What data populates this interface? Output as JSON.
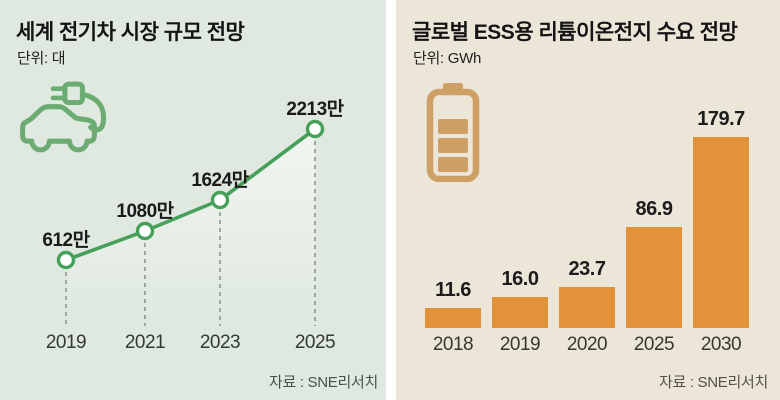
{
  "chart_data": [
    {
      "type": "line",
      "title": "세계 전기차 시장 규모 전망",
      "unit_label": "단위: 대",
      "ylabel": "대",
      "categories": [
        "2019",
        "2021",
        "2023",
        "2025"
      ],
      "values": [
        6120000,
        10800000,
        16240000,
        22130000
      ],
      "value_labels": [
        "612만",
        "1080만",
        "1624만",
        "2213만"
      ],
      "source": "자료 : SNE리서치",
      "grid": "off",
      "legend": "none",
      "marker": "open-circle",
      "ylim": [
        0,
        25000000
      ]
    },
    {
      "type": "bar",
      "title": "글로벌 ESS용 리튬이온전지 수요 전망",
      "unit_label": "단위: GWh",
      "ylabel": "GWh",
      "categories": [
        "2018",
        "2019",
        "2020",
        "2025",
        "2030"
      ],
      "values": [
        11.6,
        16.0,
        23.7,
        86.9,
        179.7
      ],
      "value_labels": [
        "11.6",
        "16.0",
        "23.7",
        "86.9",
        "179.7"
      ],
      "source": "자료 : SNE리서치",
      "grid": "off",
      "legend": "none",
      "ylim": [
        0,
        200
      ]
    }
  ],
  "icons": {
    "ev_car": "ev-car-icon",
    "battery": "battery-icon"
  },
  "colors": {
    "panel_left_bg": "#dfe9e0",
    "panel_right_bg": "#ece6d8",
    "divider": "#ffffff",
    "line_green": "#46a05a",
    "icon_green": "#6cab72",
    "bar_orange": "#e2933a",
    "battery_tan": "#cfa065",
    "dash_gray": "#8a8f8a",
    "title_text": "#141414",
    "source_text": "#4b4f4b"
  }
}
